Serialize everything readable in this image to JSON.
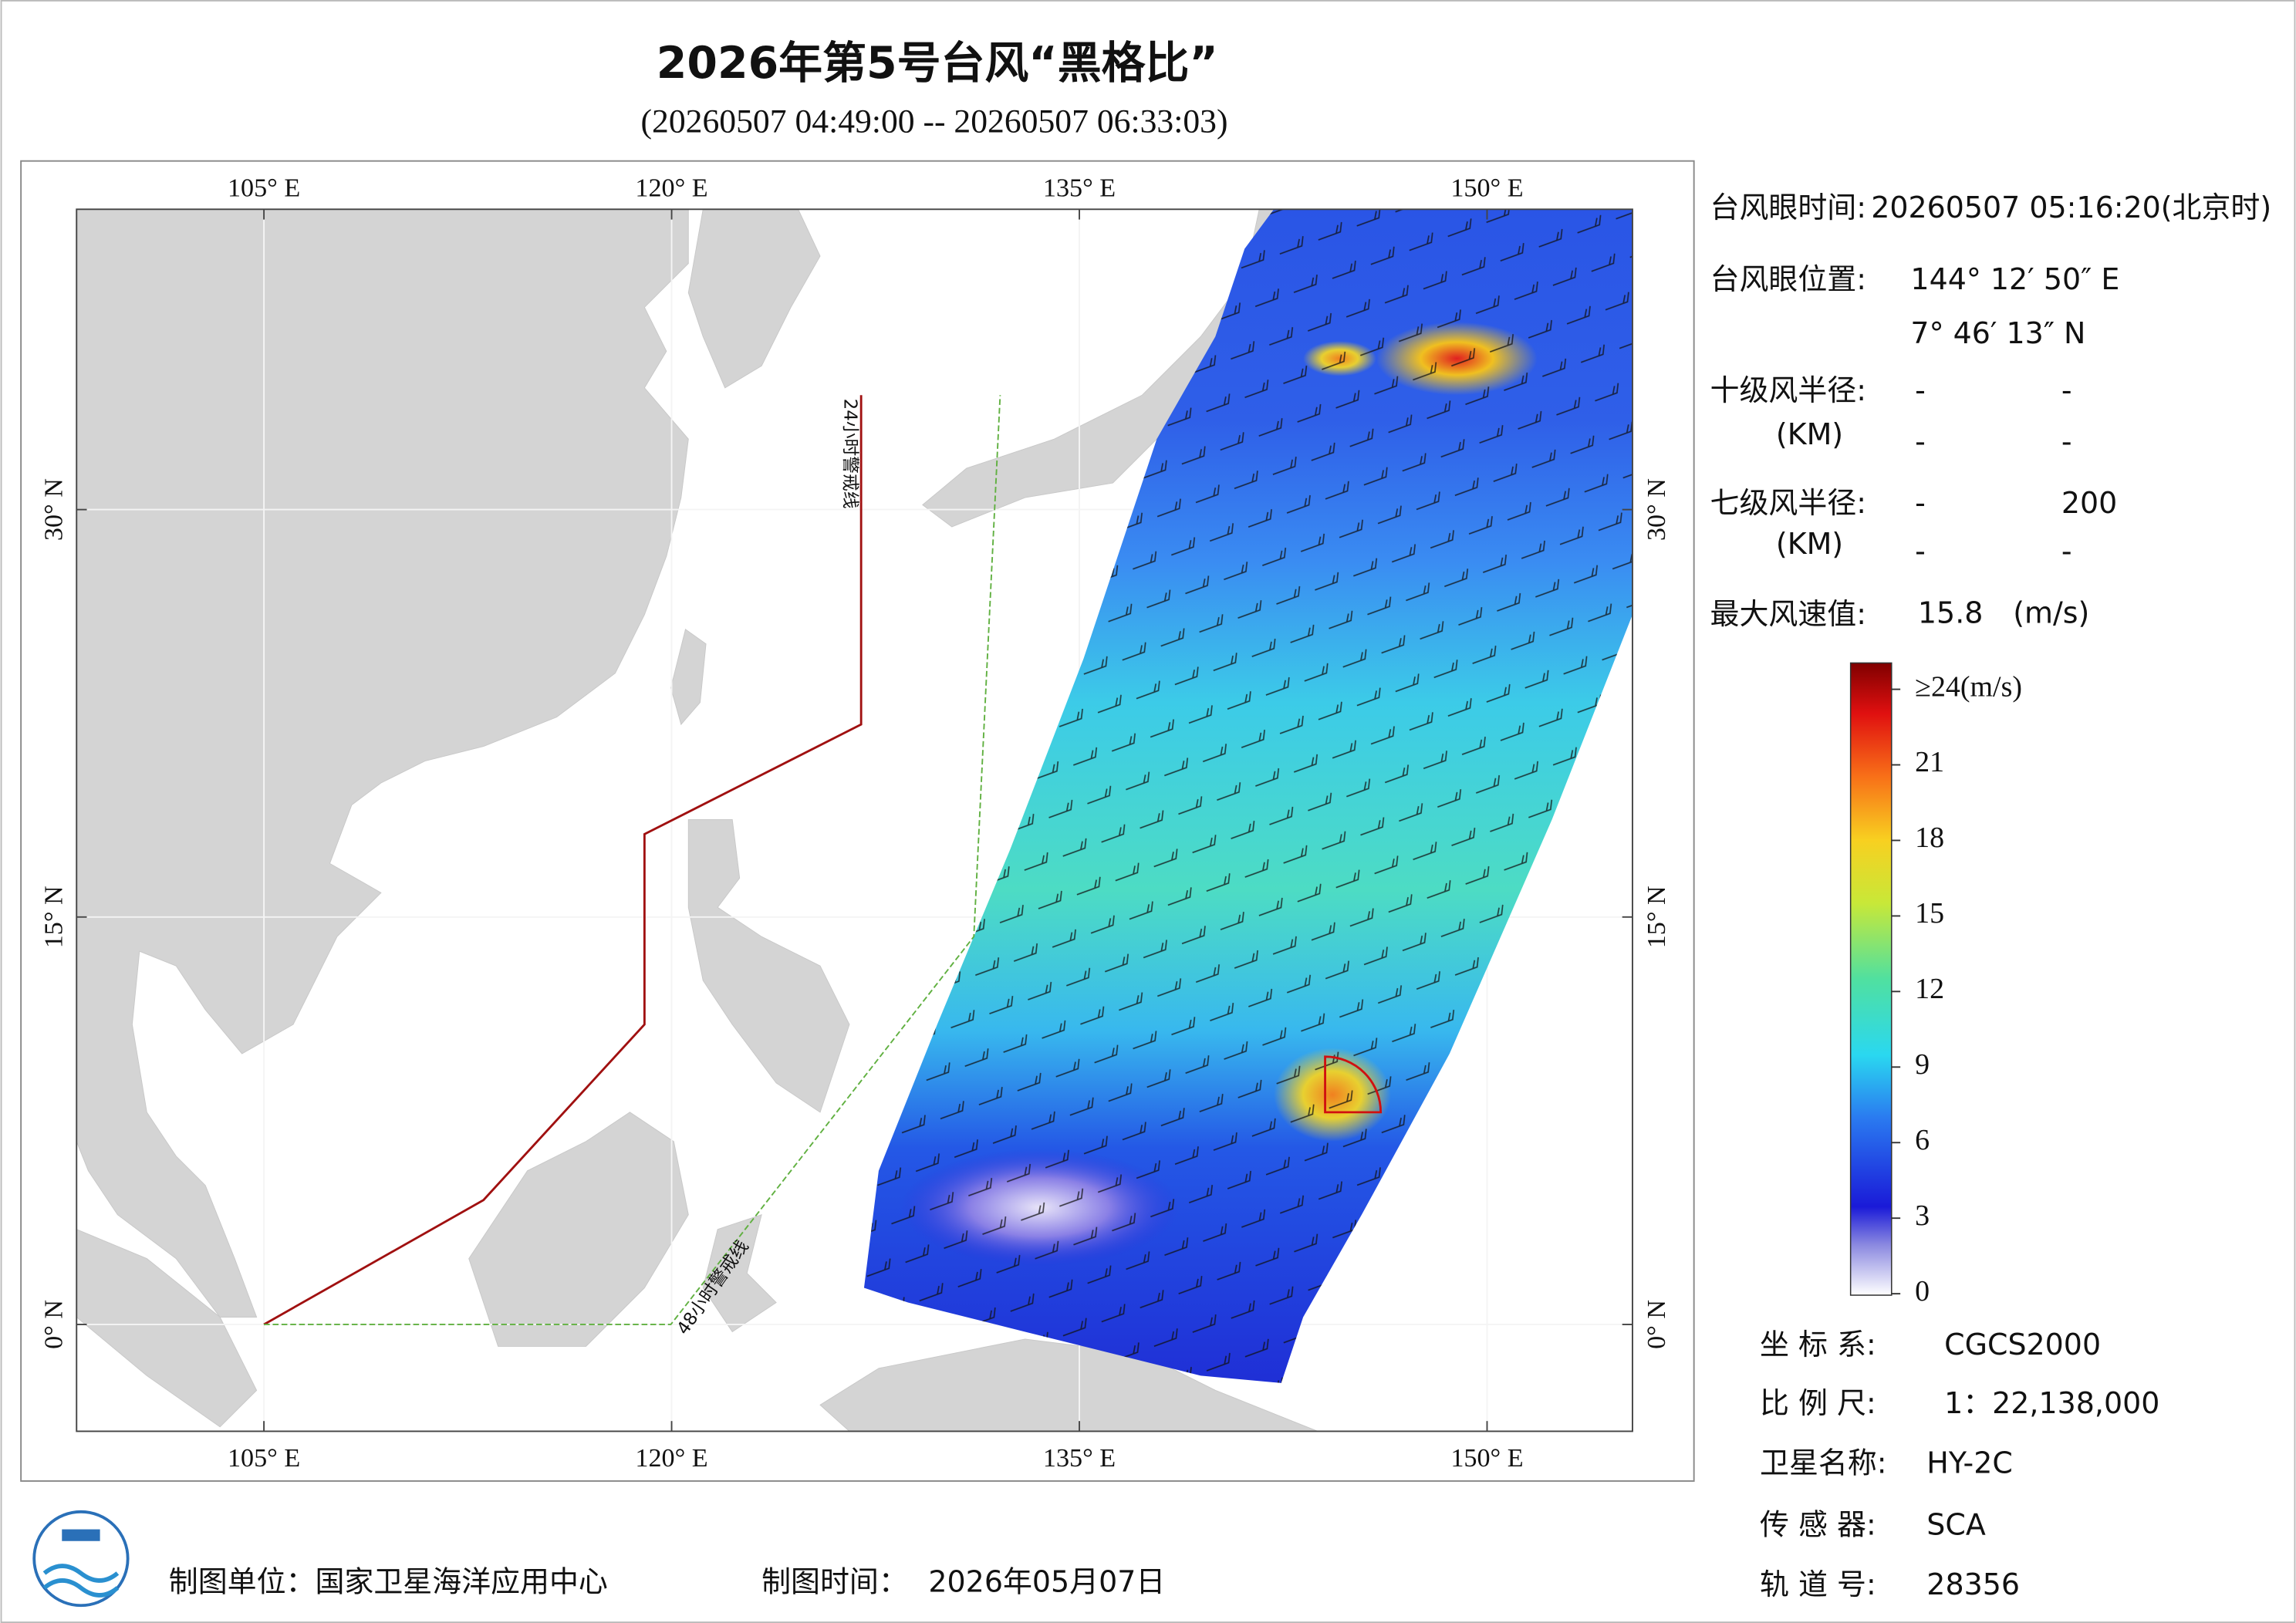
{
  "header": {
    "title": "2026年第5号台风“黑格比”",
    "subtitle": "(20260507 04:49:00 -- 20260507 06:33:03)"
  },
  "map": {
    "lon_ticks": [
      {
        "value": 105,
        "label": "105° E"
      },
      {
        "value": 120,
        "label": "120° E"
      },
      {
        "value": 135,
        "label": "135° E"
      },
      {
        "value": 150,
        "label": "150° E"
      }
    ],
    "lat_ticks": [
      {
        "value": 0,
        "label": "0° N"
      },
      {
        "value": 15,
        "label": "15° N"
      },
      {
        "value": 30,
        "label": "30° N"
      }
    ],
    "warning_lines": [
      "24小时警戒线",
      "48小时警戒线"
    ]
  },
  "info": {
    "eye_time_label": "台风眼时间:",
    "eye_time": "20260507 05:16:20(北京时)",
    "eye_pos_label": "台风眼位置:",
    "eye_lon": "144° 12′ 50″ E",
    "eye_lat": "7° 46′ 13″ N",
    "r10_label": "十级风半径:",
    "r10_values": [
      "-",
      "-"
    ],
    "r10_unit": "(KM)",
    "r10_values2": [
      "-",
      "-"
    ],
    "r7_label": "七级风半径:",
    "r7_values": [
      "-",
      200
    ],
    "r7_unit": "(KM)",
    "r7_values2": [
      "-",
      "-"
    ],
    "max_wind_label": "最大风速值:",
    "max_wind": 15.8,
    "max_wind_unit": "(m/s)"
  },
  "colorbar": {
    "ticks": [
      0,
      3,
      6,
      9,
      12,
      15,
      18,
      21,
      {
        "value": 24,
        "label": "≥24(m/s)"
      }
    ]
  },
  "meta": {
    "crs_label": "坐 标 系:",
    "crs": "CGCS2000",
    "scale_label": "比 例 尺:",
    "scale": "1：22,138,000",
    "satellite_label": "卫星名称:",
    "satellite": "HY-2C",
    "sensor_label": "传 感 器:",
    "sensor": "SCA",
    "orbit_label": "轨 道 号:",
    "orbit": 28356
  },
  "footer": {
    "unit_label": "制图单位：国家卫星海洋应用中心",
    "date_label": "制图时间：",
    "date": "2026年05月07日"
  }
}
